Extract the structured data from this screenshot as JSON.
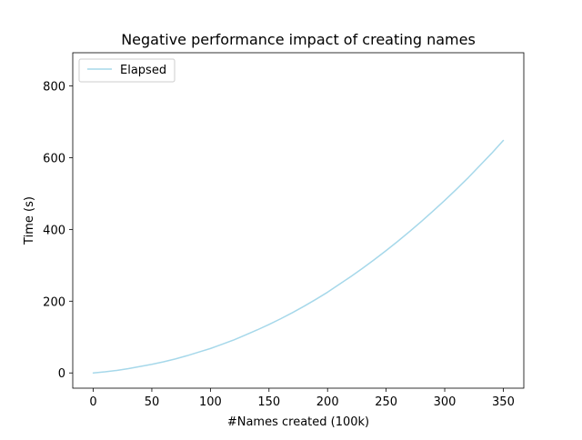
{
  "chart_data": {
    "type": "line",
    "title": "Negative performance impact of creating names",
    "xlabel": "#Names created (100k)",
    "ylabel": "Time (s)",
    "xlim": [
      -17.5,
      367.5
    ],
    "ylim": [
      -42.5,
      892.5
    ],
    "grid": false,
    "legend_position": "upper left",
    "x_ticks": [
      {
        "value": 0,
        "label": "0"
      },
      {
        "value": 50,
        "label": "50"
      },
      {
        "value": 100,
        "label": "100"
      },
      {
        "value": 150,
        "label": "150"
      },
      {
        "value": 200,
        "label": "200"
      },
      {
        "value": 250,
        "label": "250"
      },
      {
        "value": 300,
        "label": "300"
      },
      {
        "value": 350,
        "label": "350"
      }
    ],
    "y_ticks": [
      {
        "value": 0,
        "label": "0"
      },
      {
        "value": 200,
        "label": "200"
      },
      {
        "value": 400,
        "label": "400"
      },
      {
        "value": 600,
        "label": "600"
      },
      {
        "value": 800,
        "label": "800"
      }
    ],
    "series": [
      {
        "name": "Elapsed",
        "color": "#a6d8ea",
        "x": [
          0,
          10,
          20,
          30,
          40,
          50,
          60,
          70,
          80,
          90,
          100,
          110,
          120,
          130,
          140,
          150,
          160,
          170,
          180,
          190,
          200,
          210,
          220,
          230,
          240,
          250,
          260,
          270,
          280,
          290,
          300,
          310,
          320,
          330,
          340,
          350
        ],
        "y": [
          0,
          3,
          7,
          12,
          18,
          24,
          31,
          39,
          48,
          58,
          68,
          80,
          92,
          106,
          120,
          135,
          151,
          168,
          186,
          205,
          225,
          247,
          269,
          292,
          316,
          341,
          367,
          394,
          422,
          451,
          481,
          512,
          544,
          578,
          612,
          648
        ]
      }
    ]
  }
}
